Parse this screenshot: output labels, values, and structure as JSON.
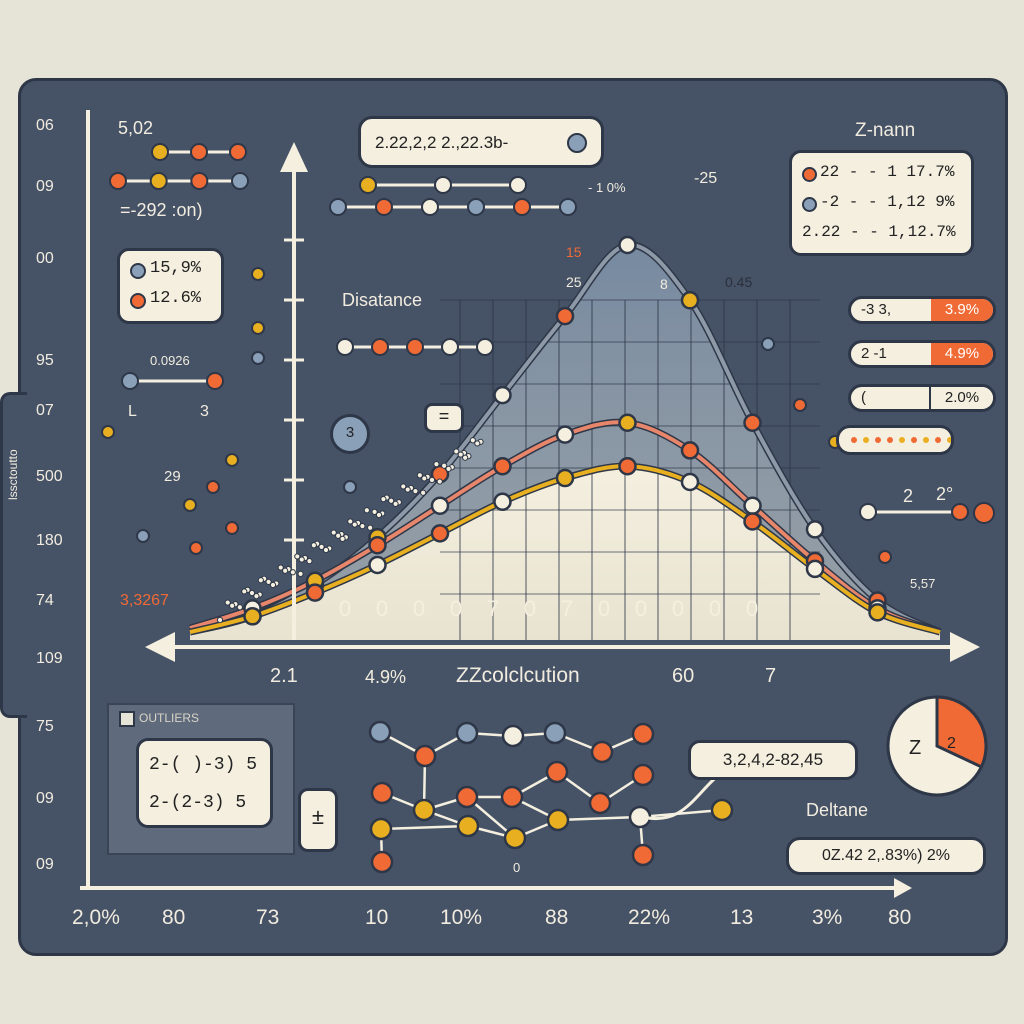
{
  "chart_data": {
    "type": "line",
    "xlabel": "ZZcolclcution",
    "x_tick_labels": [
      "0",
      "0",
      "0",
      "0",
      "7",
      "0",
      "7",
      "0",
      "0",
      "0",
      "0",
      "0"
    ],
    "bottom_axis_labels": [
      "2,0%",
      "80",
      "73",
      "10",
      "10%",
      "88",
      "22%",
      "13",
      "3%",
      "80"
    ],
    "left_axis_labels": [
      "06",
      "09",
      "00",
      "95",
      "07",
      "500",
      "180",
      "74",
      "109",
      "75",
      "09",
      "09"
    ],
    "left_side_label": "lssctoutto",
    "grid": true,
    "series": [
      {
        "color": "#8e99a8",
        "values": [
          0.02,
          0.06,
          0.14,
          0.26,
          0.42,
          0.62,
          0.82,
          1.0,
          0.86,
          0.55,
          0.28,
          0.1,
          0.02
        ]
      },
      {
        "color": "#e7866a",
        "values": [
          0.03,
          0.08,
          0.15,
          0.24,
          0.34,
          0.44,
          0.52,
          0.55,
          0.48,
          0.34,
          0.2,
          0.08,
          0.02
        ]
      },
      {
        "color": "#e8b020",
        "values": [
          0.02,
          0.06,
          0.12,
          0.19,
          0.27,
          0.35,
          0.41,
          0.44,
          0.4,
          0.3,
          0.18,
          0.07,
          0.02
        ]
      }
    ]
  },
  "labels": {
    "top_left_value": "5,02",
    "equation_left": "=-292 :on)",
    "equation_top": "2.22,2,2 2.,22.3b-",
    "distance_label": "Disatance",
    "z_mann": "Z-nann",
    "minus_25": "-25",
    "small_1": "- 1 0%",
    "red_value": "3,3267",
    "small_0926": "0.0926",
    "small_29": "29",
    "small_L": "L",
    "small_3": "3",
    "n15": "15",
    "n45": "0.45",
    "n25": "25",
    "n82": "8",
    "val_2_1": "2.1",
    "val_4_9": "4.9%",
    "val_60": "60",
    "val_7": "7",
    "right_2": "2",
    "right_2deg": "2°",
    "right_557": "5,57",
    "deltane": "Deltane",
    "outliers": "OUTLIERS",
    "seq_text": "3,2,4,2-82,45",
    "bottom_pill": "0Z.42 2,.83%) 2%",
    "small_0": "0"
  },
  "legend_left": [
    "15,9%",
    "12.6%"
  ],
  "legend_right": [
    "22 - - 1 17.7%",
    "-2 - - 1,12 9%",
    "2.22 - - 1,12.7%"
  ],
  "stat_pills": [
    {
      "left": "-3   3,",
      "right": "3.9%"
    },
    {
      "left": "2  -1",
      "right": "4.9%"
    },
    {
      "left": "(",
      "right": "2.0%"
    }
  ],
  "formula_card": [
    "2-(   )-3)  5",
    "2-(2-3)  5"
  ],
  "plus_minus_symbol": "± ",
  "pie": {
    "label_left": "Z",
    "label_slice": "2",
    "slice_fraction": 0.32
  },
  "circle_badge": "3",
  "eq_badge": "=",
  "colors": {
    "background": "#465266",
    "orange": "#f06a35",
    "yellow": "#e8b020",
    "blue": "#8aa0b8",
    "paper": "#f4efdf"
  }
}
